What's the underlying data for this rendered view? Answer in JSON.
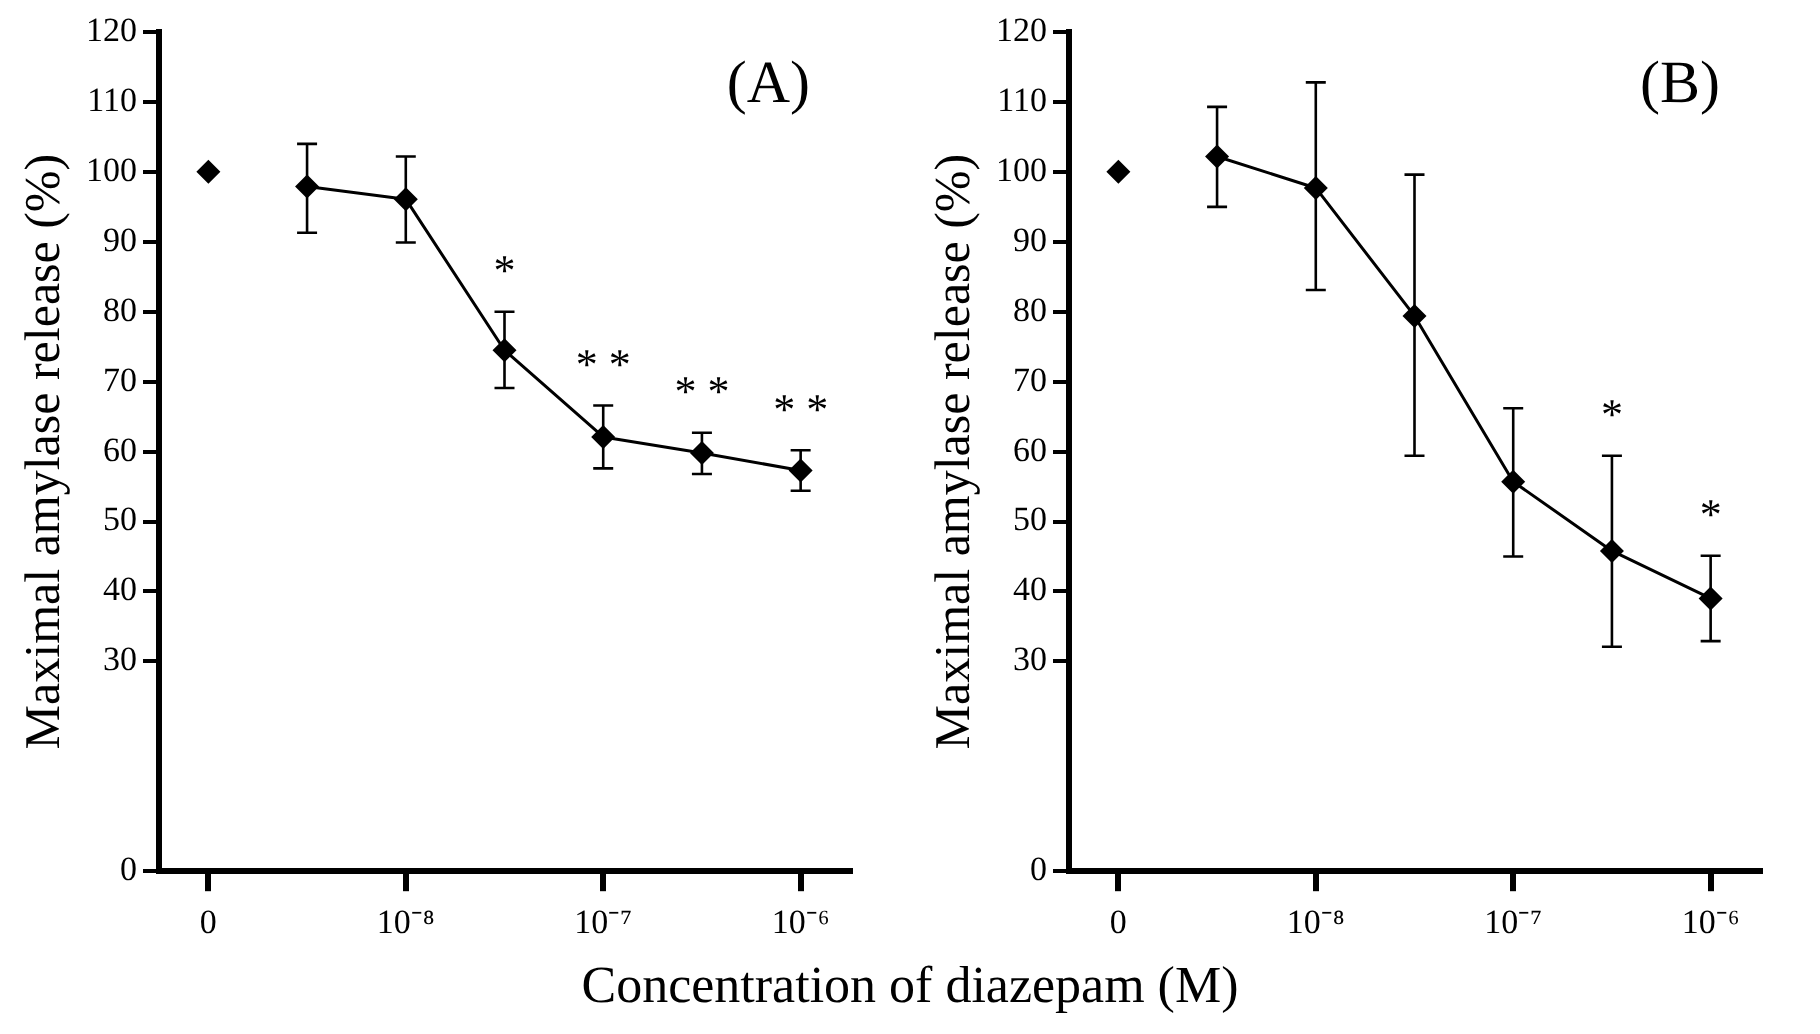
{
  "chart_data": [
    {
      "type": "line",
      "ylabel": "Maximal amylase release (%)",
      "xlabel": "Concentration of  diazepam (M)",
      "annotations": [
        "(A)"
      ],
      "categories": [
        "0",
        null,
        "10⁻⁸",
        null,
        "10⁻⁷",
        null,
        "10⁻⁶"
      ],
      "ylim": [
        0,
        120
      ],
      "yticks": [
        0,
        30,
        40,
        50,
        60,
        70,
        80,
        90,
        100,
        110,
        120
      ],
      "grid": false,
      "legend": false,
      "marker": "diamond",
      "line_style": "solid",
      "series": [
        {
          "type": "scatter",
          "color": "#000000",
          "values": [
            100,
            null,
            null,
            null,
            null,
            null,
            null
          ]
        },
        {
          "type": "line",
          "color": "#000000",
          "values": [
            null,
            97.9,
            96.1,
            74.5,
            62.1,
            59.8,
            57.3
          ],
          "errors": [
            null,
            [
              91.3,
              104
            ],
            [
              89.9,
              102.2
            ],
            [
              69.1,
              80
            ],
            [
              57.6,
              66.6
            ],
            [
              56.8,
              62.7
            ],
            [
              54.4,
              60.2
            ]
          ],
          "value_labels": [
            null,
            null,
            null,
            "*",
            "* *",
            "* *",
            "* *"
          ]
        }
      ]
    },
    {
      "type": "line",
      "ylabel": "Maximal amylase release (%)",
      "annotations": [
        "(B)"
      ],
      "categories": [
        "0",
        null,
        "10⁻⁸",
        null,
        "10⁻⁷",
        null,
        "10⁻⁶"
      ],
      "ylim": [
        0,
        120
      ],
      "yticks": [
        0,
        30,
        40,
        50,
        60,
        70,
        80,
        90,
        100,
        110,
        120
      ],
      "grid": false,
      "legend": false,
      "marker": "diamond",
      "line_style": "solid",
      "series": [
        {
          "type": "scatter",
          "color": "#000000",
          "values": [
            100,
            null,
            null,
            null,
            null,
            null,
            null
          ]
        },
        {
          "type": "line",
          "color": "#000000",
          "values": [
            null,
            102.2,
            97.7,
            79.4,
            55.7,
            45.8,
            39
          ],
          "errors": [
            null,
            [
              95,
              109.3
            ],
            [
              83.1,
              112.8
            ],
            [
              59.4,
              99.6
            ],
            [
              45,
              66.2
            ],
            [
              32.1,
              59.4
            ],
            [
              32.9,
              45.1
            ]
          ],
          "value_labels": [
            null,
            null,
            null,
            null,
            null,
            "*",
            "*"
          ]
        }
      ]
    }
  ]
}
